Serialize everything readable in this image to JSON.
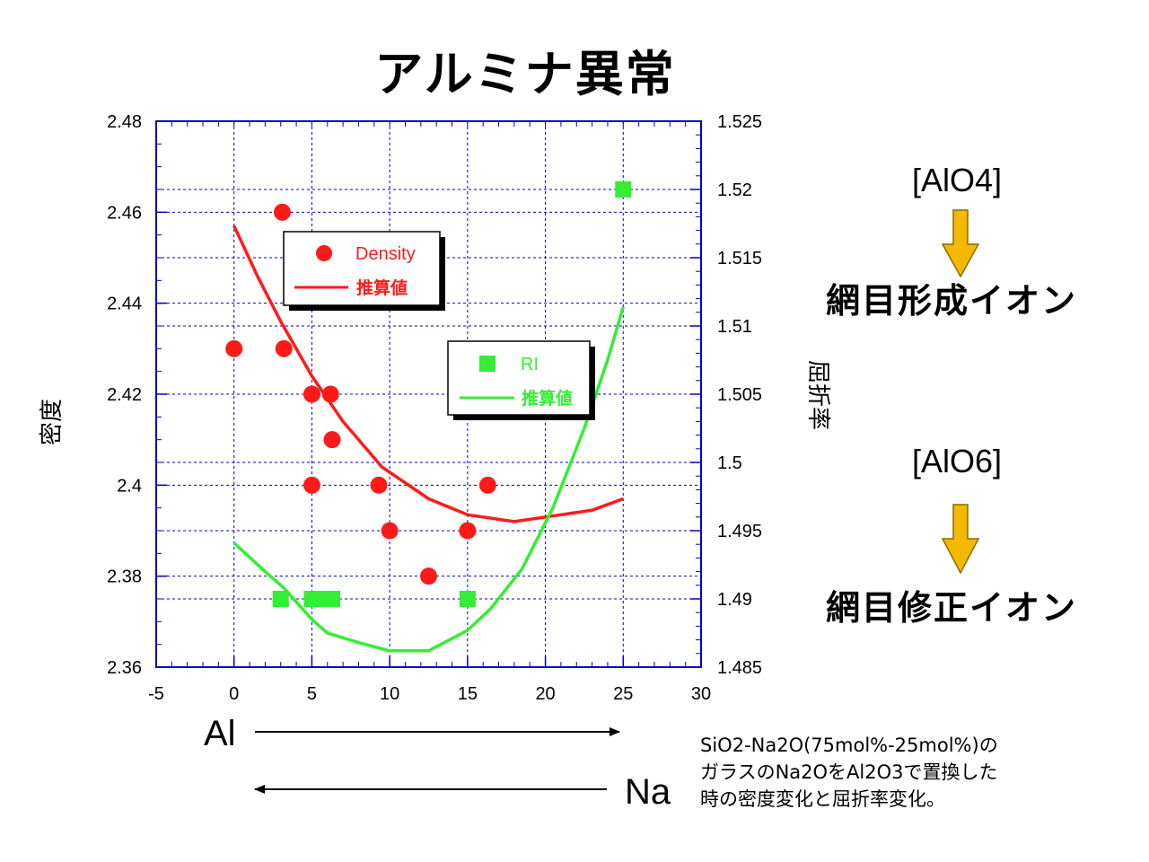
{
  "page": {
    "title": "アルミナ異常",
    "y_left_label": "密度",
    "y_right_label": "屈折率",
    "al_label": "Al",
    "na_label": "Na",
    "right_panel": {
      "top_formula": "[AlO4]",
      "top_ion": "網目形成イオン",
      "bottom_formula": "[AlO6]",
      "bottom_ion": "網目修正イオン",
      "arrow_color": "#f5b800"
    },
    "note_lines": [
      "SiO2-Na2O(75mol%-25mol%)の",
      "ガラスのNa2OをAl2O3で置換した",
      "時の密度変化と屈折率変化。"
    ],
    "legends": {
      "density": {
        "marker_label": "Density",
        "line_label": "推算値",
        "color": "#ff1a1a"
      },
      "ri": {
        "marker_label": "RI",
        "line_label": "推算値",
        "color": "#33ee33"
      }
    }
  },
  "chart_data": {
    "type": "scatter",
    "x": {
      "min": -5,
      "max": 30,
      "ticks": [
        -5,
        0,
        5,
        10,
        15,
        20,
        25,
        30
      ]
    },
    "y_left": {
      "min": 2.36,
      "max": 2.48,
      "ticks": [
        "2.36",
        "2.38",
        "2.4",
        "2.42",
        "2.44",
        "2.46",
        "2.48"
      ]
    },
    "y_right": {
      "min": 1.485,
      "max": 1.525,
      "ticks": [
        "1.485",
        "1.49",
        "1.495",
        "1.5",
        "1.505",
        "1.51",
        "1.515",
        "1.52",
        "1.525"
      ]
    },
    "grid": true,
    "series": [
      {
        "name": "Density",
        "axis": "left",
        "kind": "points",
        "marker": "circle",
        "color": "#ff1a1a",
        "points": [
          [
            0,
            2.43
          ],
          [
            3.1,
            2.46
          ],
          [
            3.2,
            2.43
          ],
          [
            5,
            2.42
          ],
          [
            6.2,
            2.42
          ],
          [
            6.3,
            2.41
          ],
          [
            5,
            2.4
          ],
          [
            9.3,
            2.4
          ],
          [
            10,
            2.39
          ],
          [
            15,
            2.39
          ],
          [
            12.5,
            2.38
          ],
          [
            16.3,
            2.4
          ]
        ]
      },
      {
        "name": "推算値",
        "axis": "left",
        "kind": "line",
        "color": "#ff1a1a",
        "points": [
          [
            0,
            2.457
          ],
          [
            1.5,
            2.446
          ],
          [
            3,
            2.436
          ],
          [
            5,
            2.424
          ],
          [
            7,
            2.414
          ],
          [
            9.5,
            2.404
          ],
          [
            12.5,
            2.397
          ],
          [
            15,
            2.3935
          ],
          [
            18,
            2.392
          ],
          [
            21,
            2.3935
          ],
          [
            23,
            2.3945
          ],
          [
            25,
            2.397
          ]
        ]
      },
      {
        "name": "RI",
        "axis": "right",
        "kind": "points",
        "marker": "square",
        "color": "#33ee33",
        "points": [
          [
            3,
            1.49
          ],
          [
            5,
            1.49
          ],
          [
            5.7,
            1.49
          ],
          [
            6.3,
            1.49
          ],
          [
            15,
            1.49
          ],
          [
            25,
            1.52
          ]
        ]
      },
      {
        "name": "推算値",
        "axis": "right",
        "kind": "line",
        "color": "#33ee33",
        "points": [
          [
            0,
            1.4941
          ],
          [
            2,
            1.492
          ],
          [
            3.2,
            1.4908
          ],
          [
            5,
            1.4885
          ],
          [
            6,
            1.4875
          ],
          [
            8,
            1.4868
          ],
          [
            10,
            1.4862
          ],
          [
            12.5,
            1.4862
          ],
          [
            15,
            1.4877
          ],
          [
            16.5,
            1.4893
          ],
          [
            18.5,
            1.4922
          ],
          [
            20.5,
            1.4967
          ],
          [
            22.5,
            1.5025
          ],
          [
            24,
            1.5075
          ],
          [
            25,
            1.5114
          ]
        ]
      }
    ]
  }
}
